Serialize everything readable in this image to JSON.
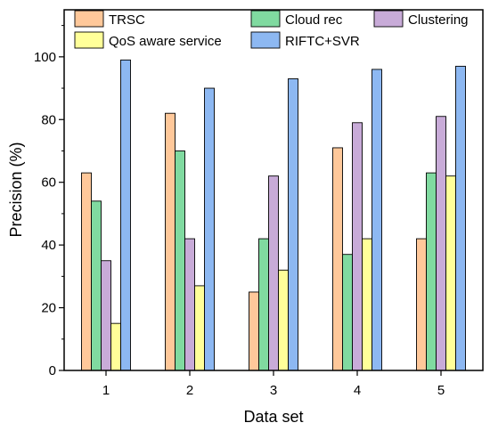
{
  "chart_data": {
    "type": "bar",
    "categories": [
      "1",
      "2",
      "3",
      "4",
      "5"
    ],
    "series": [
      {
        "name": "TRSC",
        "values": [
          63,
          82,
          25,
          71,
          42
        ],
        "color": "#FFC89A"
      },
      {
        "name": "Cloud rec",
        "values": [
          54,
          70,
          42,
          37,
          63
        ],
        "color": "#80DAA0"
      },
      {
        "name": "Clustering",
        "values": [
          35,
          42,
          62,
          79,
          81
        ],
        "color": "#C8ABD8"
      },
      {
        "name": "QoS aware service",
        "values": [
          15,
          27,
          32,
          42,
          62
        ],
        "color": "#FFFF99"
      },
      {
        "name": "RIFTC+SVR",
        "values": [
          99,
          90,
          93,
          96,
          97
        ],
        "color": "#8DB8F2"
      }
    ],
    "xlabel": "Data set",
    "ylabel": "Precision (%)",
    "ylim": [
      0,
      115
    ],
    "yticks": [
      0,
      20,
      40,
      60,
      80,
      100
    ],
    "grid": false,
    "legend_position": "top"
  }
}
